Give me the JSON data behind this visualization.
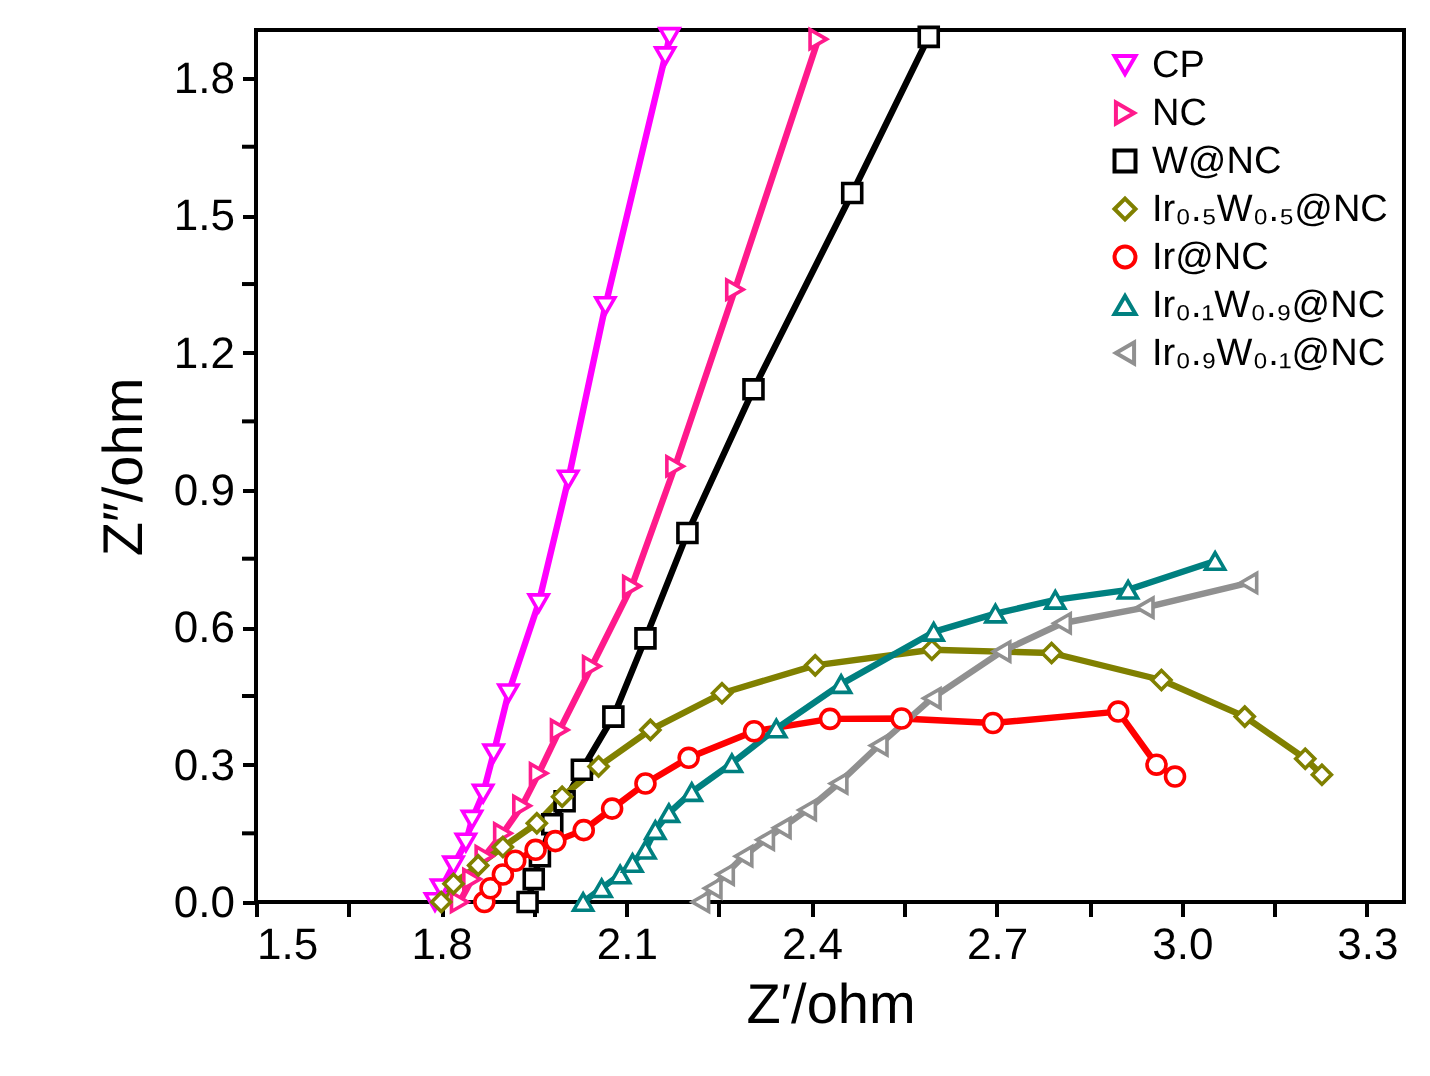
{
  "chart_data": {
    "type": "line",
    "xlabel": "Z′/ohm",
    "ylabel": "Z″/ohm",
    "xlim": [
      1.5,
      3.36
    ],
    "ylim": [
      0,
      1.905
    ],
    "xticks": [
      1.5,
      {
        "value": 1.65,
        "label": null
      },
      1.8,
      {
        "value": 1.95,
        "label": null
      },
      2.1,
      {
        "value": 2.25,
        "label": null
      },
      2.4,
      {
        "value": 2.55,
        "label": null
      },
      2.7,
      {
        "value": 2.85,
        "label": null
      },
      {
        "value": 3.0,
        "label": "3.0"
      },
      {
        "value": 3.15,
        "label": null
      },
      3.3
    ],
    "yticks": [
      {
        "value": 0,
        "label": "0.0"
      },
      {
        "value": 0.15,
        "label": null
      },
      0.3,
      {
        "value": 0.45,
        "label": null
      },
      0.6,
      {
        "value": 0.75,
        "label": null
      },
      0.9,
      {
        "value": 1.05,
        "label": null
      },
      1.2,
      {
        "value": 1.35,
        "label": null
      },
      1.5,
      {
        "value": 1.65,
        "label": null
      },
      1.8
    ],
    "grid": false,
    "legend": "top right",
    "line_style": "solid",
    "series": [
      {
        "name": "CP",
        "color": "#ff00ff",
        "marker": "triangle-down",
        "x": [
          1.79,
          1.8,
          1.82,
          1.84,
          1.85,
          1.868,
          1.885,
          1.909,
          1.958,
          2.006,
          2.066,
          2.163,
          2.17
        ],
        "values": [
          0.0,
          0.03,
          0.08,
          0.13,
          0.18,
          0.237,
          0.325,
          0.456,
          0.653,
          0.923,
          1.302,
          1.848,
          1.89
        ]
      },
      {
        "name": "NC",
        "color": "#ff1a8c",
        "marker": "triangle-right",
        "x": [
          1.83,
          1.85,
          1.87,
          1.9,
          1.931,
          1.958,
          1.992,
          2.044,
          2.109,
          2.179,
          2.276,
          2.411
        ],
        "values": [
          0.0,
          0.05,
          0.1,
          0.15,
          0.21,
          0.281,
          0.376,
          0.515,
          0.69,
          0.952,
          1.338,
          1.885
        ]
      },
      {
        "name": "W@NC",
        "color": "#000000",
        "marker": "square",
        "x": [
          1.94,
          1.95,
          1.96,
          1.98,
          2.0,
          2.028,
          2.079,
          2.131,
          2.199,
          2.306,
          2.466,
          2.59
        ],
        "values": [
          0.0,
          0.05,
          0.1,
          0.17,
          0.22,
          0.289,
          0.405,
          0.576,
          0.806,
          1.12,
          1.549,
          1.89
        ]
      },
      {
        "name": "Ir₀.₅W₀.₅@NC",
        "color": "#808000",
        "marker": "diamond",
        "x": [
          1.8,
          1.82,
          1.86,
          1.9,
          1.955,
          1.996,
          2.055,
          2.139,
          2.255,
          2.406,
          2.595,
          2.789,
          2.967,
          3.102,
          3.2,
          3.227
        ],
        "values": [
          0.0,
          0.04,
          0.08,
          0.12,
          0.172,
          0.23,
          0.296,
          0.376,
          0.456,
          0.517,
          0.551,
          0.544,
          0.485,
          0.405,
          0.313,
          0.278
        ]
      },
      {
        "name": "Ir@NC",
        "color": "#ff0000",
        "marker": "circle",
        "x": [
          1.87,
          1.88,
          1.9,
          1.92,
          1.953,
          1.985,
          2.031,
          2.077,
          2.131,
          2.201,
          2.307,
          2.43,
          2.546,
          2.694,
          2.897,
          2.959,
          2.989
        ],
        "values": [
          0.0,
          0.03,
          0.06,
          0.09,
          0.114,
          0.133,
          0.157,
          0.204,
          0.259,
          0.315,
          0.373,
          0.4,
          0.401,
          0.391,
          0.416,
          0.3,
          0.274
        ]
      },
      {
        "name": "Ir₀.₁W₀.₉@NC",
        "color": "#008080",
        "marker": "triangle-up",
        "x": [
          2.03,
          2.06,
          2.09,
          2.11,
          2.131,
          2.147,
          2.169,
          2.206,
          2.271,
          2.343,
          2.448,
          2.598,
          2.698,
          2.795,
          2.913,
          3.054
        ],
        "values": [
          0.0,
          0.03,
          0.06,
          0.085,
          0.114,
          0.157,
          0.194,
          0.24,
          0.303,
          0.379,
          0.476,
          0.59,
          0.63,
          0.66,
          0.682,
          0.745
        ]
      },
      {
        "name": "Ir₀.₉W₀.₁@NC",
        "color": "#909090",
        "marker": "triangle-left",
        "x": [
          2.22,
          2.24,
          2.26,
          2.29,
          2.325,
          2.352,
          2.393,
          2.444,
          2.509,
          2.595,
          2.708,
          2.806,
          2.94,
          3.108
        ],
        "values": [
          0.0,
          0.03,
          0.06,
          0.1,
          0.136,
          0.162,
          0.201,
          0.259,
          0.342,
          0.445,
          0.547,
          0.609,
          0.643,
          0.697
        ]
      }
    ]
  }
}
